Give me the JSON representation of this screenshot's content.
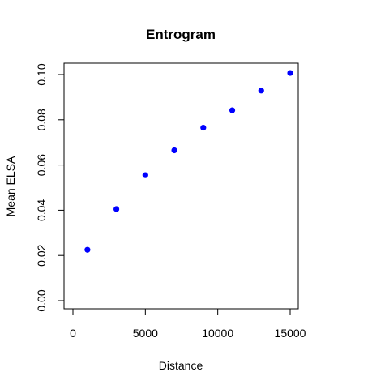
{
  "chart_data": {
    "type": "scatter",
    "title": "Entrogram",
    "xlabel": "Distance",
    "ylabel": "Mean ELSA",
    "xlim": [
      0,
      15000
    ],
    "ylim": [
      0,
      0.1
    ],
    "x_ticks": [
      "0",
      "5000",
      "10000",
      "15000"
    ],
    "y_ticks": [
      "0.00",
      "0.02",
      "0.04",
      "0.06",
      "0.08",
      "0.10"
    ],
    "grid": false,
    "point_color": "#0000ff",
    "series": [
      {
        "x": [
          1000,
          3000,
          5000,
          7000,
          9000,
          11000,
          13000,
          15000
        ],
        "y": [
          0.0225,
          0.0405,
          0.0555,
          0.0665,
          0.0765,
          0.0842,
          0.0929,
          0.1007
        ]
      }
    ]
  }
}
